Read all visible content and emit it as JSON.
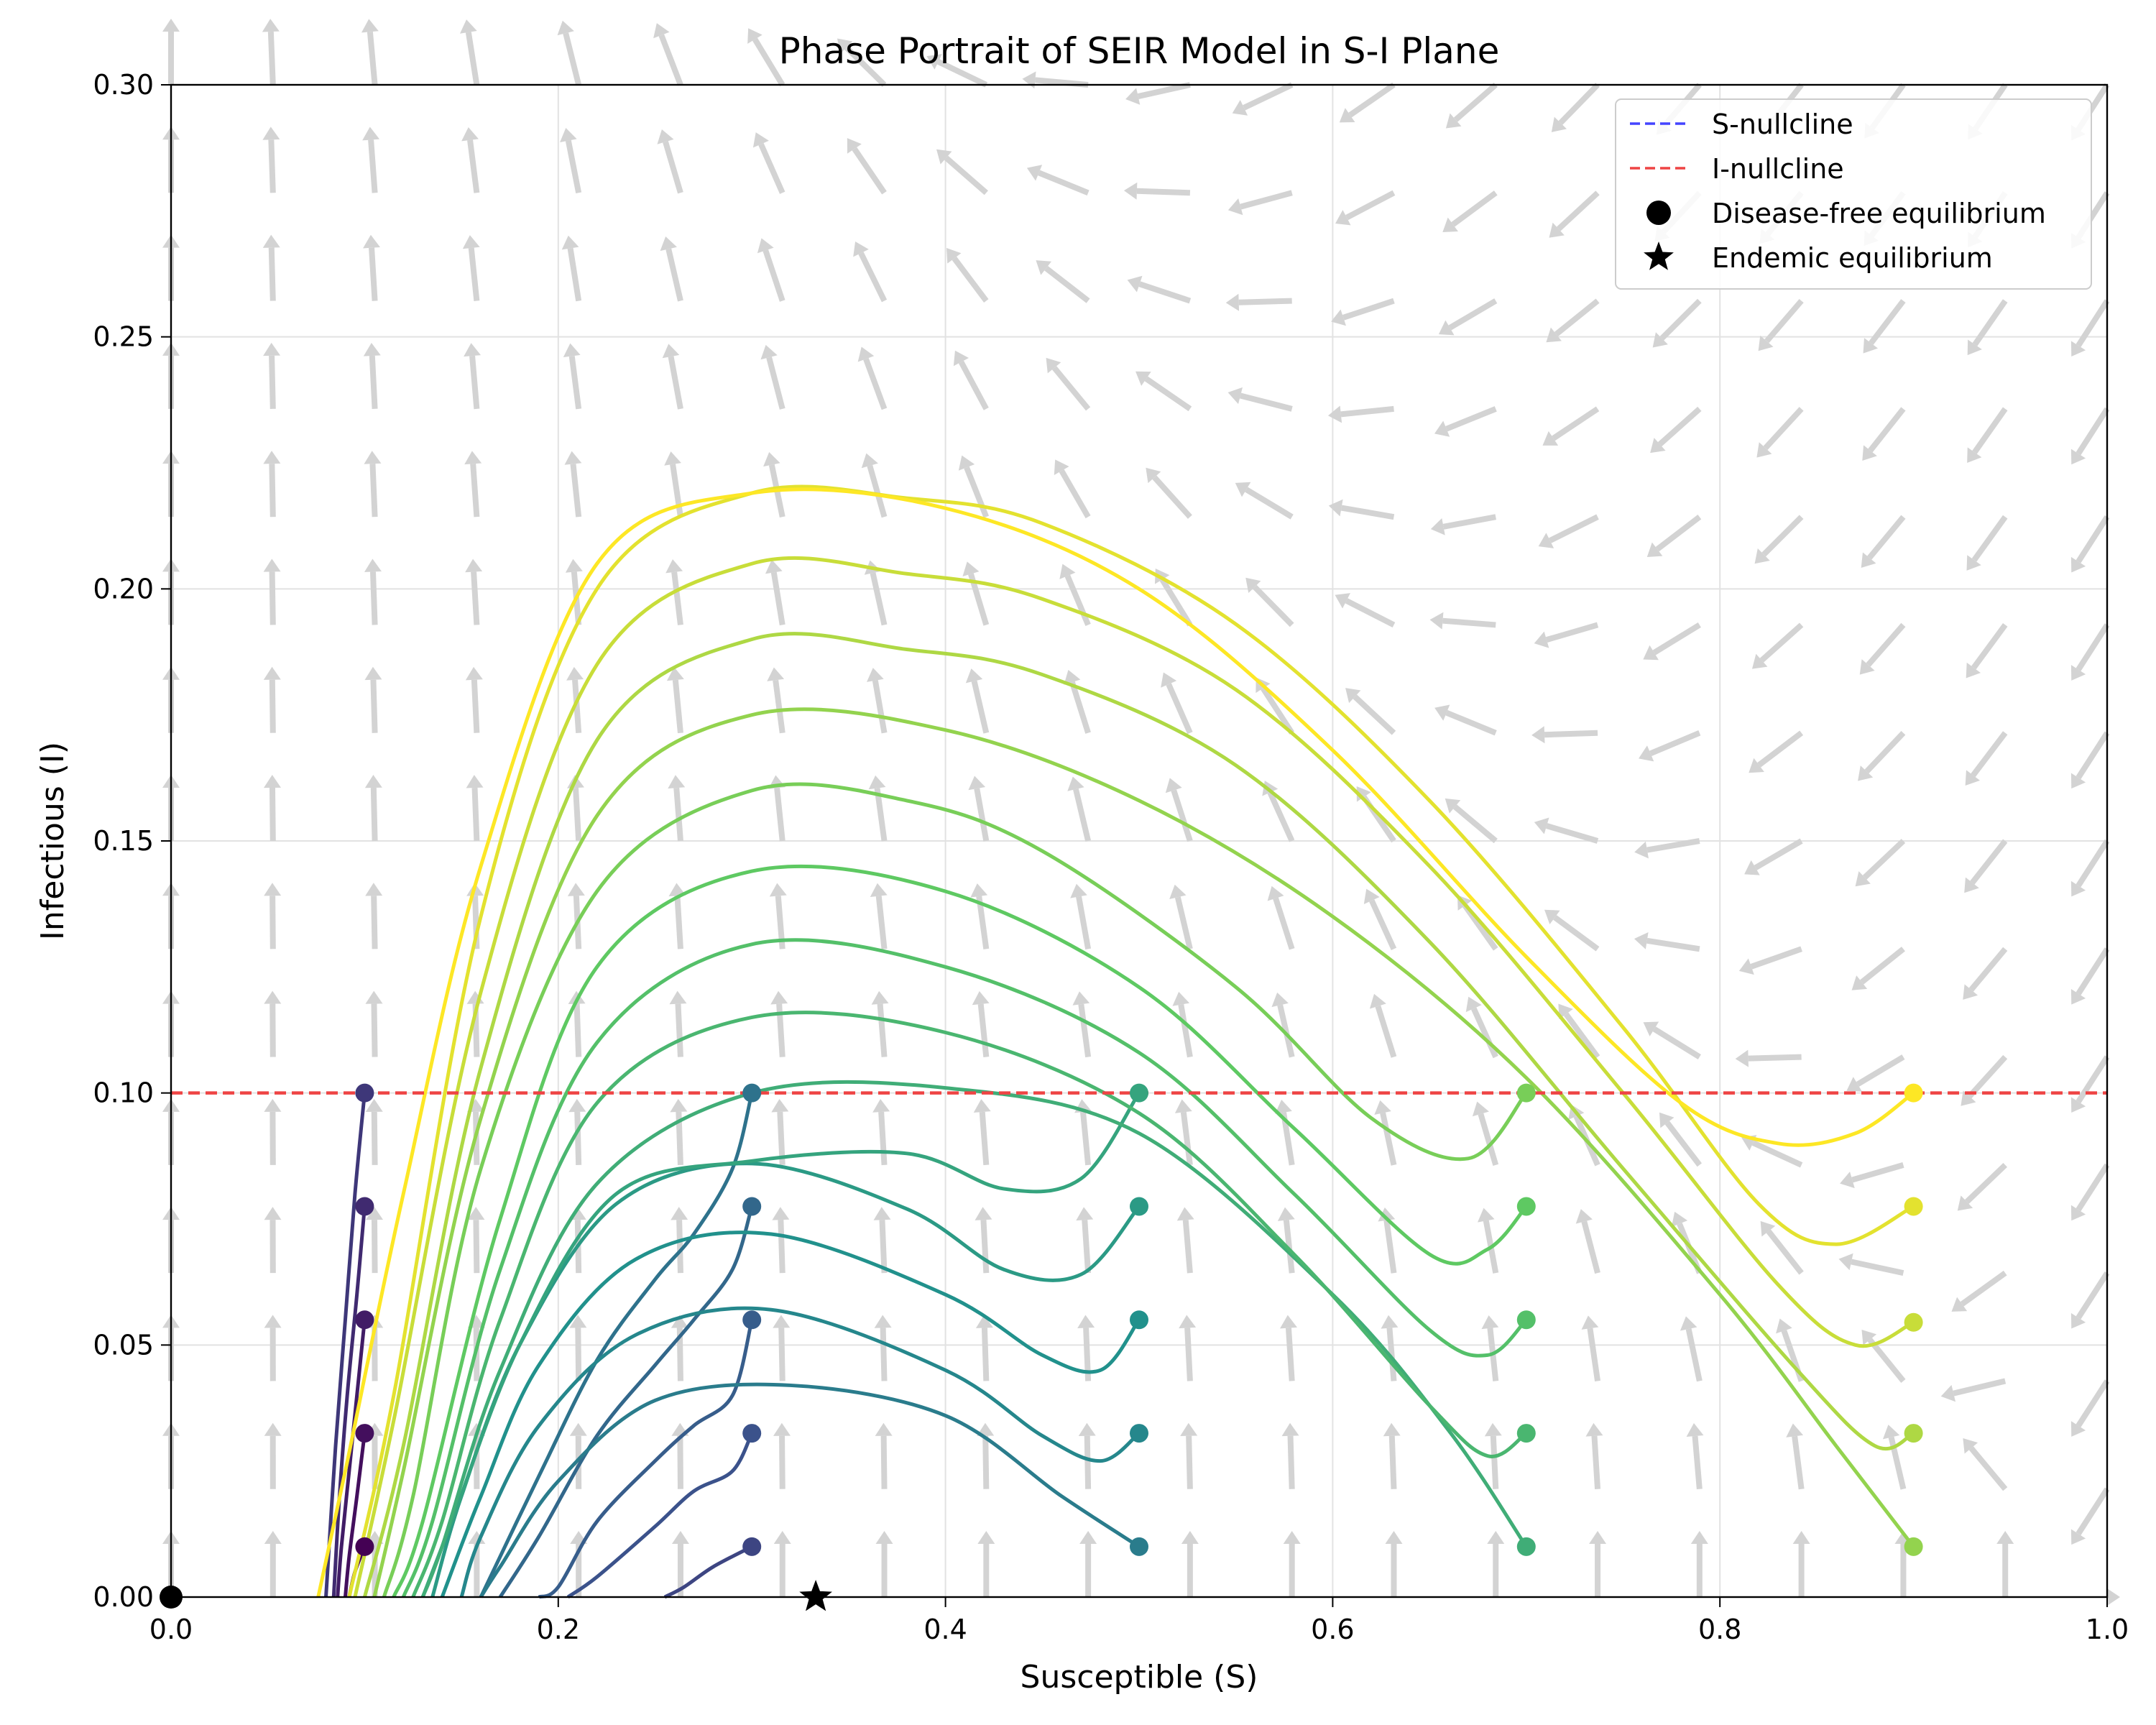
{
  "chart_data": {
    "type": "line",
    "title": "Phase Portrait of SEIR Model in S-I Plane",
    "xlabel": "Susceptible (S)",
    "ylabel": "Infectious (I)",
    "xlim": [
      0.0,
      1.0
    ],
    "ylim": [
      0.0,
      0.3
    ],
    "x_ticks": [
      "0.0",
      "0.2",
      "0.4",
      "0.6",
      "0.8",
      "1.0"
    ],
    "y_ticks": [
      "0.00",
      "0.05",
      "0.10",
      "0.15",
      "0.20",
      "0.25",
      "0.30"
    ],
    "grid": true,
    "legend_position": "top-right",
    "legend": [
      {
        "label": "S-nullcline",
        "style": "dashed-line",
        "color": "#4444ff"
      },
      {
        "label": "I-nullcline",
        "style": "dashed-line",
        "color": "#ee4444"
      },
      {
        "label": "Disease-free equilibrium",
        "style": "circle-marker",
        "color": "#000000"
      },
      {
        "label": "Endemic equilibrium",
        "style": "star-marker",
        "color": "#000000"
      }
    ],
    "nullclines": [
      {
        "label": "I-nullcline",
        "y": 0.1,
        "color": "#ee4444"
      }
    ],
    "equilibria": {
      "disease_free": [
        0.0,
        0.0
      ],
      "endemic": [
        0.333,
        0.0
      ]
    },
    "colormap": "viridis",
    "trajectories": [
      {
        "start": [
          0.1,
          0.01
        ],
        "points": [
          [
            0.1,
            0.01
          ],
          [
            0.095,
            0.005
          ],
          [
            0.092,
            0
          ]
        ]
      },
      {
        "start": [
          0.1,
          0.0325
        ],
        "points": [
          [
            0.1,
            0.0325
          ],
          [
            0.096,
            0.02
          ],
          [
            0.092,
            0.008
          ],
          [
            0.09,
            0
          ]
        ]
      },
      {
        "start": [
          0.1,
          0.055
        ],
        "points": [
          [
            0.1,
            0.055
          ],
          [
            0.096,
            0.04
          ],
          [
            0.092,
            0.025
          ],
          [
            0.088,
            0.01
          ],
          [
            0.086,
            0
          ]
        ]
      },
      {
        "start": [
          0.1,
          0.0775
        ],
        "points": [
          [
            0.1,
            0.0775
          ],
          [
            0.096,
            0.06
          ],
          [
            0.091,
            0.04
          ],
          [
            0.087,
            0.02
          ],
          [
            0.084,
            0
          ]
        ]
      },
      {
        "start": [
          0.1,
          0.1
        ],
        "points": [
          [
            0.1,
            0.1
          ],
          [
            0.095,
            0.08
          ],
          [
            0.09,
            0.055
          ],
          [
            0.085,
            0.03
          ],
          [
            0.08,
            0
          ]
        ]
      },
      {
        "start": [
          0.3,
          0.01
        ],
        "points": [
          [
            0.3,
            0.01
          ],
          [
            0.28,
            0.006
          ],
          [
            0.265,
            0.002
          ],
          [
            0.255,
            0
          ]
        ]
      },
      {
        "start": [
          0.3,
          0.0325
        ],
        "points": [
          [
            0.3,
            0.0325
          ],
          [
            0.29,
            0.025
          ],
          [
            0.27,
            0.021
          ],
          [
            0.25,
            0.014
          ],
          [
            0.22,
            0.004
          ],
          [
            0.205,
            0
          ]
        ]
      },
      {
        "start": [
          0.3,
          0.055
        ],
        "points": [
          [
            0.3,
            0.055
          ],
          [
            0.29,
            0.04
          ],
          [
            0.27,
            0.034
          ],
          [
            0.25,
            0.027
          ],
          [
            0.22,
            0.015
          ],
          [
            0.2,
            0.002
          ],
          [
            0.19,
            -0.005
          ]
        ]
      },
      {
        "start": [
          0.3,
          0.0775
        ],
        "points": [
          [
            0.3,
            0.0775
          ],
          [
            0.29,
            0.065
          ],
          [
            0.27,
            0.055
          ],
          [
            0.25,
            0.046
          ],
          [
            0.22,
            0.032
          ],
          [
            0.19,
            0.012
          ],
          [
            0.17,
            0
          ]
        ]
      },
      {
        "start": [
          0.3,
          0.1
        ],
        "points": [
          [
            0.3,
            0.1
          ],
          [
            0.29,
            0.085
          ],
          [
            0.27,
            0.072
          ],
          [
            0.25,
            0.063
          ],
          [
            0.22,
            0.047
          ],
          [
            0.19,
            0.024
          ],
          [
            0.16,
            0
          ]
        ]
      },
      {
        "start": [
          0.5,
          0.01
        ],
        "points": [
          [
            0.5,
            0.01
          ],
          [
            0.46,
            0.02
          ],
          [
            0.4,
            0.036
          ],
          [
            0.32,
            0.042
          ],
          [
            0.25,
            0.039
          ],
          [
            0.2,
            0.023
          ],
          [
            0.17,
            0.006
          ],
          [
            0.16,
            0
          ]
        ]
      },
      {
        "start": [
          0.5,
          0.0325
        ],
        "points": [
          [
            0.5,
            0.0325
          ],
          [
            0.48,
            0.027
          ],
          [
            0.45,
            0.032
          ],
          [
            0.4,
            0.045
          ],
          [
            0.31,
            0.057
          ],
          [
            0.24,
            0.052
          ],
          [
            0.19,
            0.034
          ],
          [
            0.16,
            0.012
          ],
          [
            0.15,
            0
          ]
        ]
      },
      {
        "start": [
          0.5,
          0.055
        ],
        "points": [
          [
            0.5,
            0.055
          ],
          [
            0.48,
            0.045
          ],
          [
            0.45,
            0.048
          ],
          [
            0.4,
            0.06
          ],
          [
            0.31,
            0.072
          ],
          [
            0.24,
            0.067
          ],
          [
            0.19,
            0.046
          ],
          [
            0.16,
            0.02
          ],
          [
            0.14,
            0
          ]
        ]
      },
      {
        "start": [
          0.5,
          0.0775
        ],
        "points": [
          [
            0.5,
            0.0775
          ],
          [
            0.47,
            0.064
          ],
          [
            0.43,
            0.065
          ],
          [
            0.38,
            0.077
          ],
          [
            0.3,
            0.086
          ],
          [
            0.23,
            0.078
          ],
          [
            0.18,
            0.05
          ],
          [
            0.15,
            0.02
          ],
          [
            0.135,
            0
          ]
        ]
      },
      {
        "start": [
          0.5,
          0.1
        ],
        "points": [
          [
            0.5,
            0.1
          ],
          [
            0.47,
            0.083
          ],
          [
            0.43,
            0.081
          ],
          [
            0.38,
            0.088
          ],
          [
            0.3,
            0.0865
          ],
          [
            0.23,
            0.08
          ],
          [
            0.18,
            0.05
          ],
          [
            0.145,
            0.015
          ],
          [
            0.13,
            0
          ]
        ]
      },
      {
        "start": [
          0.7,
          0.01
        ],
        "points": [
          [
            0.7,
            0.01
          ],
          [
            0.66,
            0.033
          ],
          [
            0.6,
            0.06
          ],
          [
            0.5,
            0.092
          ],
          [
            0.4,
            0.101
          ],
          [
            0.3,
            0.1
          ],
          [
            0.22,
            0.082
          ],
          [
            0.17,
            0.045
          ],
          [
            0.14,
            0.01
          ],
          [
            0.13,
            0
          ]
        ]
      },
      {
        "start": [
          0.7,
          0.0325
        ],
        "points": [
          [
            0.7,
            0.0325
          ],
          [
            0.68,
            0.028
          ],
          [
            0.65,
            0.038
          ],
          [
            0.58,
            0.068
          ],
          [
            0.5,
            0.096
          ],
          [
            0.4,
            0.112
          ],
          [
            0.3,
            0.115
          ],
          [
            0.22,
            0.098
          ],
          [
            0.17,
            0.055
          ],
          [
            0.14,
            0.015
          ],
          [
            0.125,
            0
          ]
        ]
      },
      {
        "start": [
          0.7,
          0.055
        ],
        "points": [
          [
            0.7,
            0.055
          ],
          [
            0.68,
            0.048
          ],
          [
            0.65,
            0.053
          ],
          [
            0.58,
            0.08
          ],
          [
            0.5,
            0.108
          ],
          [
            0.4,
            0.125
          ],
          [
            0.3,
            0.1295
          ],
          [
            0.22,
            0.11
          ],
          [
            0.17,
            0.065
          ],
          [
            0.135,
            0.015
          ],
          [
            0.12,
            0
          ]
        ]
      },
      {
        "start": [
          0.7,
          0.0775
        ],
        "points": [
          [
            0.7,
            0.0775
          ],
          [
            0.68,
            0.069
          ],
          [
            0.65,
            0.068
          ],
          [
            0.58,
            0.093
          ],
          [
            0.5,
            0.121
          ],
          [
            0.4,
            0.14
          ],
          [
            0.3,
            0.144
          ],
          [
            0.22,
            0.125
          ],
          [
            0.17,
            0.075
          ],
          [
            0.13,
            0.015
          ],
          [
            0.115,
            0
          ]
        ]
      },
      {
        "start": [
          0.7,
          0.1
        ],
        "points": [
          [
            0.7,
            0.1
          ],
          [
            0.67,
            0.087
          ],
          [
            0.62,
            0.095
          ],
          [
            0.55,
            0.121
          ],
          [
            0.45,
            0.148
          ],
          [
            0.38,
            0.158
          ],
          [
            0.3,
            0.16
          ],
          [
            0.22,
            0.14
          ],
          [
            0.16,
            0.085
          ],
          [
            0.125,
            0.02
          ],
          [
            0.11,
            0
          ]
        ]
      },
      {
        "start": [
          0.9,
          0.01
        ],
        "points": [
          [
            0.9,
            0.01
          ],
          [
            0.86,
            0.03
          ],
          [
            0.8,
            0.06
          ],
          [
            0.7,
            0.103
          ],
          [
            0.6,
            0.135
          ],
          [
            0.5,
            0.158
          ],
          [
            0.4,
            0.172
          ],
          [
            0.3,
            0.175
          ],
          [
            0.22,
            0.155
          ],
          [
            0.16,
            0.095
          ],
          [
            0.12,
            0.025
          ],
          [
            0.105,
            0
          ]
        ]
      },
      {
        "start": [
          0.9,
          0.0325
        ],
        "points": [
          [
            0.9,
            0.0325
          ],
          [
            0.88,
            0.03
          ],
          [
            0.84,
            0.045
          ],
          [
            0.75,
            0.085
          ],
          [
            0.65,
            0.13
          ],
          [
            0.55,
            0.165
          ],
          [
            0.45,
            0.183
          ],
          [
            0.38,
            0.188
          ],
          [
            0.3,
            0.19
          ],
          [
            0.22,
            0.17
          ],
          [
            0.16,
            0.105
          ],
          [
            0.12,
            0.03
          ],
          [
            0.1,
            0
          ]
        ]
      },
      {
        "start": [
          0.9,
          0.0545
        ],
        "points": [
          [
            0.9,
            0.0545
          ],
          [
            0.87,
            0.05
          ],
          [
            0.83,
            0.062
          ],
          [
            0.75,
            0.1
          ],
          [
            0.65,
            0.145
          ],
          [
            0.55,
            0.18
          ],
          [
            0.45,
            0.198
          ],
          [
            0.38,
            0.203
          ],
          [
            0.3,
            0.205
          ],
          [
            0.22,
            0.185
          ],
          [
            0.16,
            0.12
          ],
          [
            0.115,
            0.035
          ],
          [
            0.095,
            0
          ]
        ]
      },
      {
        "start": [
          0.9,
          0.0775
        ],
        "points": [
          [
            0.9,
            0.0775
          ],
          [
            0.86,
            0.07
          ],
          [
            0.82,
            0.078
          ],
          [
            0.75,
            0.113
          ],
          [
            0.65,
            0.158
          ],
          [
            0.55,
            0.193
          ],
          [
            0.45,
            0.213
          ],
          [
            0.38,
            0.218
          ],
          [
            0.3,
            0.219
          ],
          [
            0.22,
            0.2
          ],
          [
            0.16,
            0.135
          ],
          [
            0.115,
            0.04
          ],
          [
            0.092,
            0
          ]
        ]
      },
      {
        "start": [
          0.9,
          0.1
        ],
        "points": [
          [
            0.9,
            0.1
          ],
          [
            0.87,
            0.092
          ],
          [
            0.83,
            0.09
          ],
          [
            0.78,
            0.098
          ],
          [
            0.7,
            0.127
          ],
          [
            0.6,
            0.168
          ],
          [
            0.5,
            0.2
          ],
          [
            0.4,
            0.216
          ],
          [
            0.3,
            0.219
          ],
          [
            0.22,
            0.205
          ],
          [
            0.16,
            0.145
          ],
          [
            0.12,
            0.08
          ],
          [
            0.09,
            0.025
          ],
          [
            0.076,
            0
          ]
        ]
      }
    ]
  }
}
